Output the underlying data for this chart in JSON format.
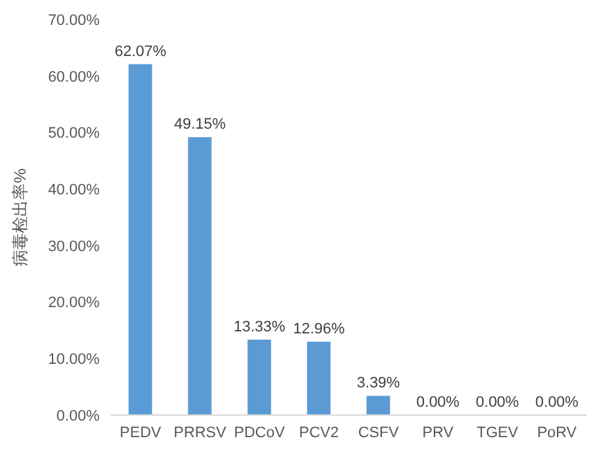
{
  "chart_data": {
    "type": "bar",
    "ylabel": "病毒检出率%",
    "categories": [
      "PEDV",
      "PRRSV",
      "PDCoV",
      "PCV2",
      "CSFV",
      "PRV",
      "TGEV",
      "PoRV"
    ],
    "values": [
      62.07,
      49.15,
      13.33,
      12.96,
      3.39,
      0,
      0,
      0
    ],
    "value_labels": [
      "62.07%",
      "49.15%",
      "13.33%",
      "12.96%",
      "3.39%",
      "0.00%",
      "0.00%",
      "0.00%"
    ],
    "color": "#5b9bd5",
    "ylim": [
      0,
      70
    ],
    "yticks": [
      {
        "value": 0,
        "label": "0.00%"
      },
      {
        "value": 10,
        "label": "10.00%"
      },
      {
        "value": 20,
        "label": "20.00%"
      },
      {
        "value": 30,
        "label": "30.00%"
      },
      {
        "value": 40,
        "label": "40.00%"
      },
      {
        "value": 50,
        "label": "50.00%"
      },
      {
        "value": 60,
        "label": "60.00%"
      },
      {
        "value": 70,
        "label": "70.00%"
      }
    ],
    "grid": false
  }
}
